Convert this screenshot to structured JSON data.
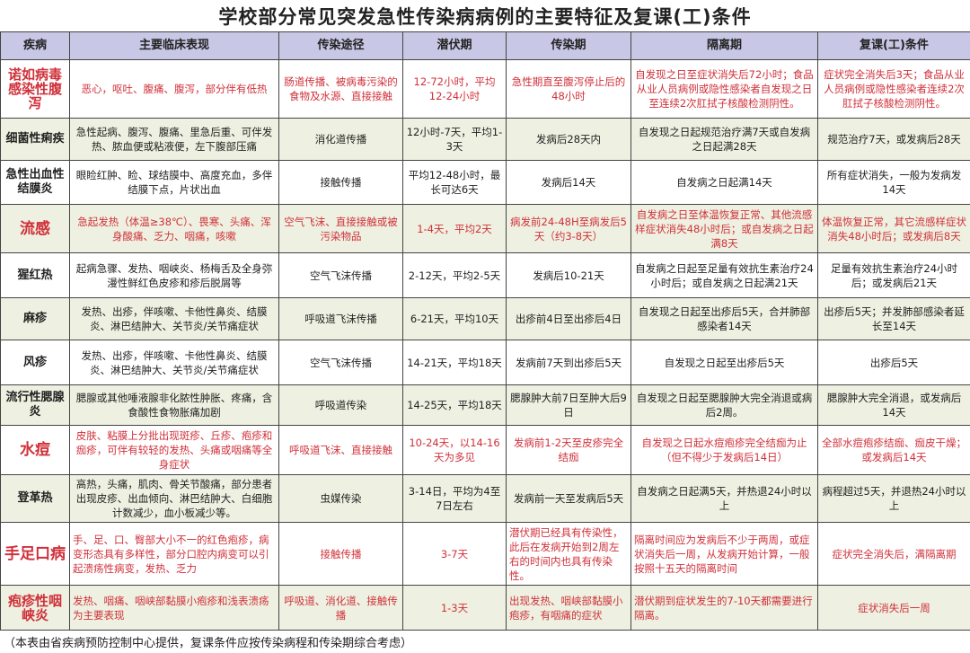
{
  "title": "学校部分常见突发急性传染病病例的主要特征及复课(工)条件",
  "headers": [
    "疾病",
    "主要临床表现",
    "传染途径",
    "潜伏期",
    "传染期",
    "隔离期",
    "复课(工)条件"
  ],
  "colors": {
    "header_bg": "#c8c8e6",
    "row_alt_bg": "#eef1e1",
    "highlight_text": "#d0303a"
  },
  "rows": [
    {
      "disease": "诺如病毒感染性腹泻",
      "symptoms": "恶心，呕吐、腹痛、腹泻，部分伴有低热",
      "route": "肠道传播、被病毒污染的食物及水源、直接接触",
      "incubation": "12-72小时，平均12-24小时",
      "infectious": "急性期直至腹泻停止后的48小时",
      "isolation": "自发现之日至症状消失后72小时；食品从业人员病例或隐性感染者自发现之日至连续2次肛拭子核酸检测阴性。",
      "return": "症状完全消失后3天；食品从业人员病例或隐性感染者连续2次肛拭子核酸检测阴性。",
      "highlight": true
    },
    {
      "disease": "细菌性痢疾",
      "symptoms": "急性起病、腹泻、腹痛、里急后重、可伴发热、脓血便或粘液便，左下腹部压痛",
      "route": "消化道传播",
      "incubation": "12小时-7天，平均1-3天",
      "infectious": "发病后28天内",
      "isolation": "自发现之日起规范治疗满7天或自发病之日起满28天",
      "return": "规范治疗7天，或发病后28天",
      "highlight": false
    },
    {
      "disease": "急性出血性结膜炎",
      "symptoms": "眼睑红肿、睑、球结膜中、高度充血，多伴结膜下点，片状出血",
      "route": "接触传播",
      "incubation": "平均12-48小时，最长可达6天",
      "infectious": "发病后14天",
      "isolation": "自发病之日起满14天",
      "return": "所有症状消失，一般为发病发14天",
      "highlight": false
    },
    {
      "disease": "流感",
      "symptoms": "急起发热（体温≥38℃）、畏寒、头痛、浑身酸痛、乏力、咽痛，咳嗽",
      "route": "空气飞沫、直接接触或被污染物品",
      "incubation": "1-4天，平均2天",
      "infectious": "病发前24-48H至病发后5天（约3-8天）",
      "isolation": "自发病之日至体温恢复正常、其他流感样症状消失48小时后；或自发病之日起满8天",
      "return": "体温恢复正常，其它流感样症状消失48小时后；或发病后8天",
      "highlight": true
    },
    {
      "disease": "猩红热",
      "symptoms": "起病急骤、发热、咽峡炎、杨梅舌及全身弥漫性鲜红色皮疹和疹后脱屑等",
      "route": "空气飞沫传播",
      "incubation": "2-12天，平均2-5天",
      "infectious": "发病后10-21天",
      "isolation": "自发病之日起至足量有效抗生素治疗24小时后；或自发病之日起满21天",
      "return": "足量有效抗生素治疗24小时后；或发病后21天",
      "highlight": false
    },
    {
      "disease": "麻疹",
      "symptoms": "发热、出疹，伴咳嗽、卡他性鼻炎、结膜炎、淋巴结肿大、关节炎/关节痛症状",
      "route": "呼吸道飞沫传播",
      "incubation": "6-21天，平均10天",
      "infectious": "出疹前4日至出疹后4日",
      "isolation": "自发现之日起至出疹后5天，合并肺部感染者14天",
      "return": "出疹后5天；并发肺部感染者延长至14天",
      "highlight": false
    },
    {
      "disease": "风疹",
      "symptoms": "发热、出疹，伴咳嗽、卡他性鼻炎、结膜炎、淋巴结肿大、关节炎/关节痛症状",
      "route": "空气飞沫传播",
      "incubation": "14-21天，平均18天",
      "infectious": "发病前7天到出疹后5天",
      "isolation": "自发现之日起至出疹后5天",
      "return": "出疹后5天",
      "highlight": false
    },
    {
      "disease": "流行性腮腺炎",
      "symptoms": "腮腺或其他唾液腺非化脓性肿胀、疼痛，含食酸性食物胀痛加剧",
      "route": "呼吸道传染",
      "incubation": "14-25天，平均18天",
      "infectious": "腮腺肿大前7日至肿大后9日",
      "isolation": "自发现之日起至腮腺肿大完全消退或病后2周。",
      "return": "腮腺肿大完全消退，或发病后14天",
      "highlight": false
    },
    {
      "disease": "水痘",
      "symptoms": "皮肤、粘膜上分批出现斑疹、丘疹、疱疹和痂疹，可伴有较轻的发热、头痛或咽痛等全身症状",
      "route": "呼吸道飞沫、直接接触",
      "incubation": "10-24天，以14-16天为多见",
      "infectious": "发病前1-2天至皮疹完全结痂",
      "isolation": "自发现之日起水痘疱疹完全结痂为止（但不得少于发病后14日）",
      "return": "全部水痘疱疹结痂、痂皮干燥；或发病后14天",
      "highlight": true
    },
    {
      "disease": "登革热",
      "symptoms": "高热，头痛，肌肉、骨关节酸痛，部分患者出现皮疹、出血倾向、淋巴结肿大、白细胞计数减少，血小板减少等。",
      "route": "虫媒传染",
      "incubation": "3-14日，平均为4至7日左右",
      "infectious": "发病前一天至发病后5天",
      "isolation": "自发病之日起满5天，并热退24小时以上",
      "return": "病程超过5天，并退热24小时以上",
      "highlight": false
    },
    {
      "disease": "手足口病",
      "symptoms": "手、足、口、臀部大小不一的红色疱疹，病变形态具有多样性，部分口腔内病变可以引起溃疡性病变，发热、乏力",
      "route": "接触传播",
      "incubation": "3-7天",
      "infectious": "潜伏期已经具有传染性，此后在发病开始到2周左右的时间内也具有传染性。",
      "isolation": "隔离时间应为发病后不少于两周，或症状消失后一周，从发病开始计算，一般按照十五天的隔离时间",
      "return": "症状完全消失后，满隔离期",
      "highlight": true
    },
    {
      "disease": "疱疹性咽峡炎",
      "symptoms": "发热、咽痛、咽峡部黏膜小疱疹和浅表溃疡为主要表现",
      "route": "呼吸道、消化道、接触传播",
      "incubation": "1-3天",
      "infectious": "出现发热、咽峡部黏膜小疱疹，有咽痛的症状",
      "isolation": "潜伏期到症状发生的7-10天都需要进行隔离。",
      "return": "症状消失后一周",
      "highlight": true
    }
  ],
  "footnote": "（本表由省疾病预防控制中心提供，复课条件应按传染病程和传染期综合考虑）"
}
